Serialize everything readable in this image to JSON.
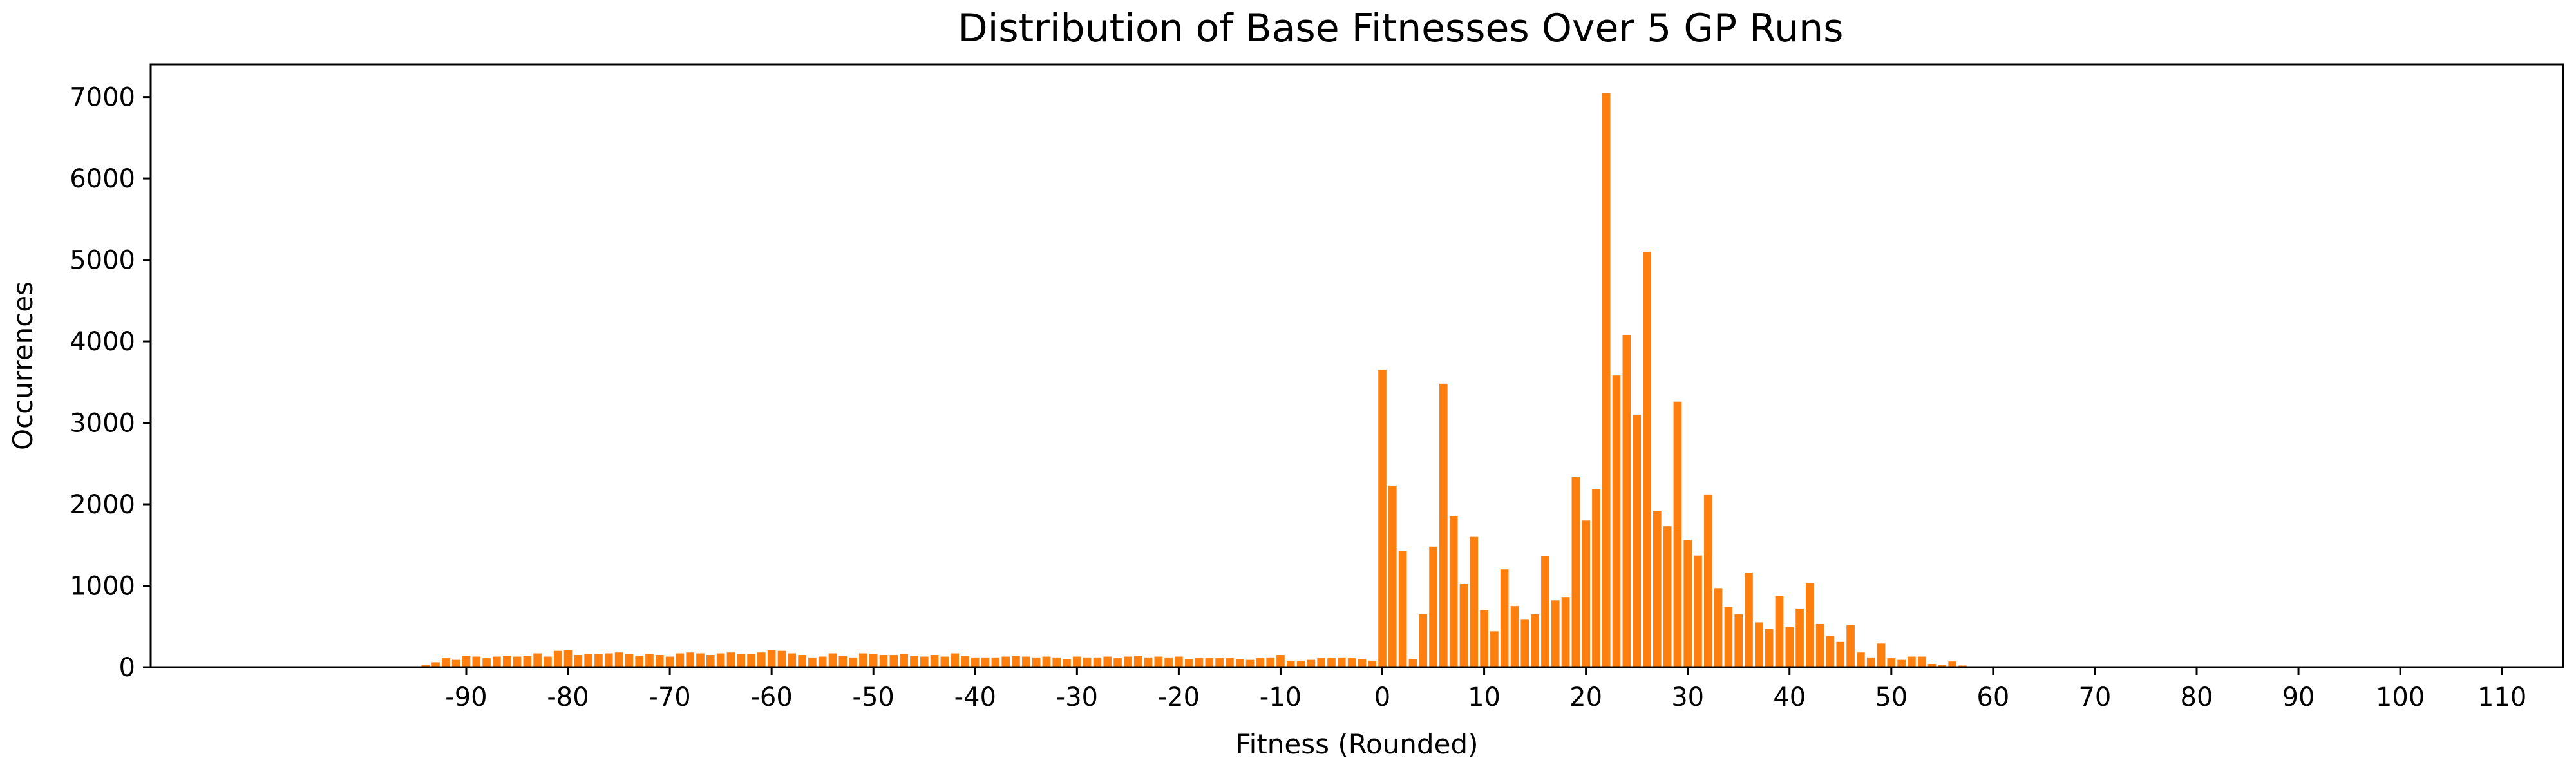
{
  "chart_data": {
    "type": "bar",
    "title": "Distribution of Base Fitnesses Over 5 GP Runs",
    "xlabel": "Fitness (Rounded)",
    "ylabel": "Occurrences",
    "xlim": [
      -121,
      116
    ],
    "ylim": [
      0,
      7400
    ],
    "grid": false,
    "bar_color": "#ff7f0e",
    "x_ticks": [
      {
        "value": -90,
        "label": "-90"
      },
      {
        "value": -80,
        "label": "-80"
      },
      {
        "value": -70,
        "label": "-70"
      },
      {
        "value": -60,
        "label": "-60"
      },
      {
        "value": -50,
        "label": "-50"
      },
      {
        "value": -40,
        "label": "-40"
      },
      {
        "value": -30,
        "label": "-30"
      },
      {
        "value": -20,
        "label": "-20"
      },
      {
        "value": -10,
        "label": "-10"
      },
      {
        "value": 0,
        "label": "0"
      },
      {
        "value": 10,
        "label": "10"
      },
      {
        "value": 20,
        "label": "20"
      },
      {
        "value": 30,
        "label": "30"
      },
      {
        "value": 40,
        "label": "40"
      },
      {
        "value": 50,
        "label": "50"
      },
      {
        "value": 60,
        "label": "60"
      },
      {
        "value": 70,
        "label": "70"
      },
      {
        "value": 80,
        "label": "80"
      },
      {
        "value": 90,
        "label": "90"
      },
      {
        "value": 100,
        "label": "100"
      },
      {
        "value": 110,
        "label": "110"
      }
    ],
    "y_ticks": [
      {
        "value": 0,
        "label": "0"
      },
      {
        "value": 1000,
        "label": "1000"
      },
      {
        "value": 2000,
        "label": "2000"
      },
      {
        "value": 3000,
        "label": "3000"
      },
      {
        "value": 4000,
        "label": "4000"
      },
      {
        "value": 5000,
        "label": "5000"
      },
      {
        "value": 6000,
        "label": "6000"
      },
      {
        "value": 7000,
        "label": "7000"
      }
    ],
    "x": [
      -94,
      -93,
      -92,
      -91,
      -90,
      -89,
      -88,
      -87,
      -86,
      -85,
      -84,
      -83,
      -82,
      -81,
      -80,
      -79,
      -78,
      -77,
      -76,
      -75,
      -74,
      -73,
      -72,
      -71,
      -70,
      -69,
      -68,
      -67,
      -66,
      -65,
      -64,
      -63,
      -62,
      -61,
      -60,
      -59,
      -58,
      -57,
      -56,
      -55,
      -54,
      -53,
      -52,
      -51,
      -50,
      -49,
      -48,
      -47,
      -46,
      -45,
      -44,
      -43,
      -42,
      -41,
      -40,
      -39,
      -38,
      -37,
      -36,
      -35,
      -34,
      -33,
      -32,
      -31,
      -30,
      -29,
      -28,
      -27,
      -26,
      -25,
      -24,
      -23,
      -22,
      -21,
      -20,
      -19,
      -18,
      -17,
      -16,
      -15,
      -14,
      -13,
      -12,
      -11,
      -10,
      -9,
      -8,
      -7,
      -6,
      -5,
      -4,
      -3,
      -2,
      -1,
      0,
      1,
      2,
      3,
      4,
      5,
      6,
      7,
      8,
      9,
      10,
      11,
      12,
      13,
      14,
      15,
      16,
      17,
      18,
      19,
      20,
      21,
      22,
      23,
      24,
      25,
      26,
      27,
      28,
      29,
      30,
      31,
      32,
      33,
      34,
      35,
      36,
      37,
      38,
      39,
      40,
      41,
      42,
      43,
      44,
      45,
      46,
      47,
      48,
      49,
      50,
      51,
      52,
      53,
      54,
      55,
      56,
      57
    ],
    "values": [
      30,
      60,
      110,
      90,
      140,
      130,
      110,
      130,
      140,
      130,
      140,
      170,
      130,
      200,
      210,
      150,
      160,
      160,
      170,
      180,
      160,
      140,
      160,
      150,
      130,
      170,
      180,
      170,
      150,
      170,
      180,
      160,
      160,
      180,
      210,
      200,
      170,
      150,
      120,
      130,
      170,
      140,
      120,
      170,
      160,
      150,
      150,
      160,
      140,
      130,
      150,
      130,
      170,
      140,
      120,
      120,
      120,
      130,
      140,
      130,
      120,
      130,
      120,
      100,
      130,
      120,
      120,
      130,
      110,
      130,
      140,
      120,
      130,
      120,
      130,
      100,
      110,
      110,
      110,
      110,
      100,
      90,
      110,
      120,
      150,
      80,
      80,
      90,
      110,
      110,
      120,
      110,
      100,
      80,
      3650,
      2230,
      1430,
      100,
      650,
      1480,
      3480,
      1850,
      1020,
      1600,
      700,
      440,
      1200,
      750,
      590,
      650,
      1360,
      820,
      860,
      2340,
      1800,
      2190,
      7050,
      3580,
      4080,
      3100,
      5100,
      1920,
      1730,
      3260,
      1560,
      1370,
      2120,
      970,
      740,
      650,
      1160,
      550,
      470,
      870,
      490,
      720,
      1030,
      530,
      380,
      310,
      520,
      180,
      120,
      290,
      110,
      90,
      130,
      130,
      40,
      30,
      70,
      20
    ]
  }
}
